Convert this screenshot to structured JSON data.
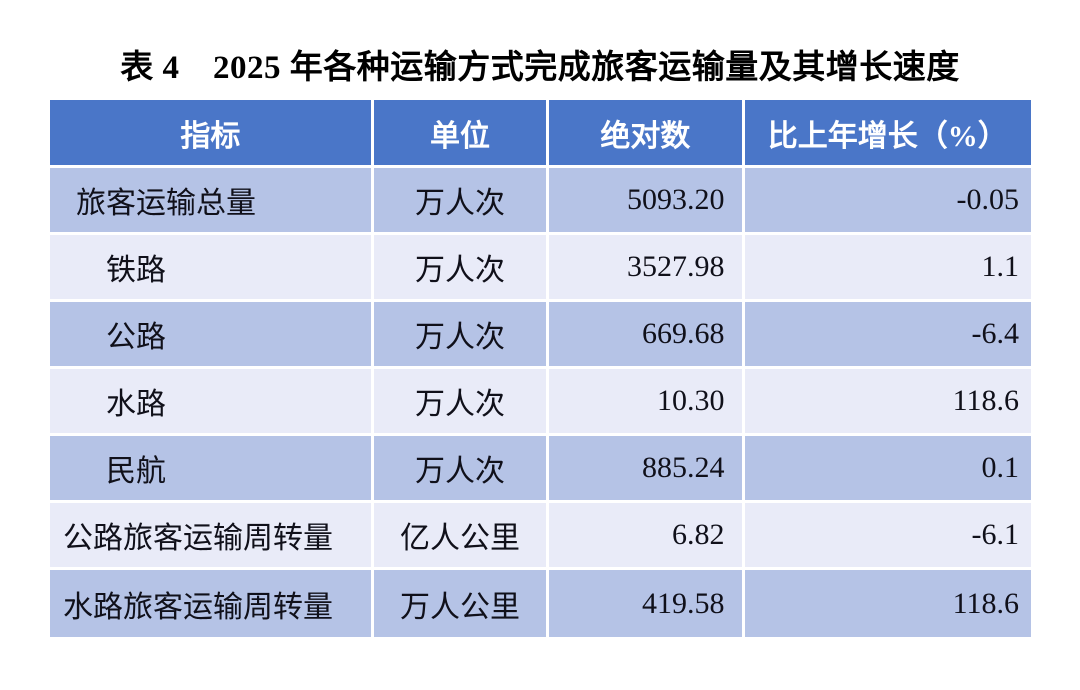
{
  "title": "表 4　2025 年各种运输方式完成旅客运输量及其增长速度",
  "colors": {
    "header_bg": "#4a76c8",
    "row_dark": "#b5c3e6",
    "row_light": "#e9ebf8",
    "header_text": "#ffffff",
    "cell_text": "#10101a",
    "grid": "#ffffff"
  },
  "table": {
    "columns": [
      {
        "key": "indicator",
        "label": "指标"
      },
      {
        "key": "unit",
        "label": "单位"
      },
      {
        "key": "absolute",
        "label": "绝对数"
      },
      {
        "key": "growth",
        "label": "比上年增长（%）"
      }
    ],
    "rows": [
      {
        "indicator": "旅客运输总量",
        "indent": "small",
        "unit": "万人次",
        "absolute": "5093.20",
        "growth": "-0.05"
      },
      {
        "indicator": "铁路",
        "indent": "large",
        "unit": "万人次",
        "absolute": "3527.98",
        "growth": "1.1"
      },
      {
        "indicator": "公路",
        "indent": "large",
        "unit": "万人次",
        "absolute": "669.68",
        "growth": "-6.4"
      },
      {
        "indicator": "水路",
        "indent": "large",
        "unit": "万人次",
        "absolute": "10.30",
        "growth": "118.6"
      },
      {
        "indicator": "民航",
        "indent": "large",
        "unit": "万人次",
        "absolute": "885.24",
        "growth": "0.1"
      },
      {
        "indicator": "公路旅客运输周转量",
        "indent": "none",
        "unit": "亿人公里",
        "absolute": "6.82",
        "growth": "-6.1"
      },
      {
        "indicator": "水路旅客运输周转量",
        "indent": "none",
        "unit": "万人公里",
        "absolute": "419.58",
        "growth": "118.6"
      }
    ]
  }
}
